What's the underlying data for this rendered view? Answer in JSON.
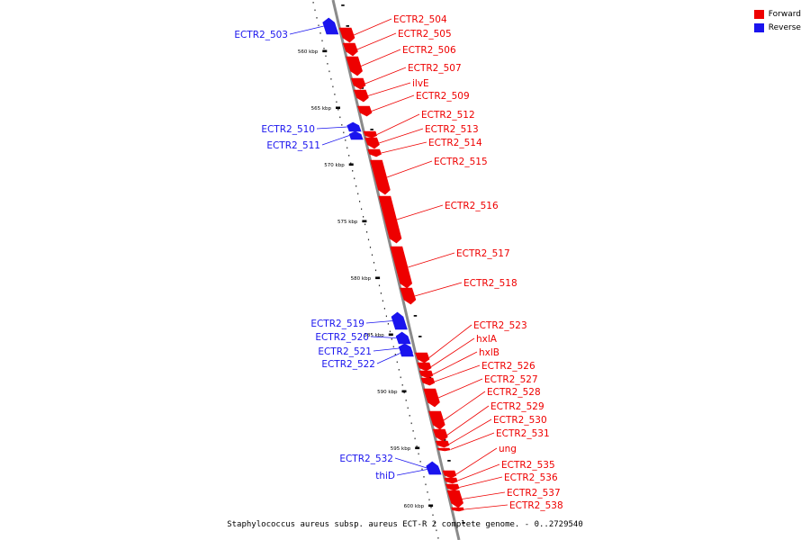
{
  "caption": "Staphylococcus aureus subsp. aureus ECT-R 2 complete genome. - 0..2729540",
  "colors": {
    "forward": "#ee0000",
    "reverse": "#1a14ee",
    "backbone": "#8a8a8a"
  },
  "legend": [
    {
      "key": "forward",
      "label": "Forward",
      "color": "#ee0000"
    },
    {
      "key": "reverse",
      "label": "Reverse",
      "color": "#1a14ee"
    }
  ],
  "ticks": [
    {
      "label": "560 kbp"
    },
    {
      "label": "565 kbp"
    },
    {
      "label": "570 kbp"
    },
    {
      "label": "575 kbp"
    },
    {
      "label": "580 kbp"
    },
    {
      "label": "585 kbp"
    },
    {
      "label": "590 kbp"
    },
    {
      "label": "595 kbp"
    },
    {
      "label": "600 kbp"
    }
  ],
  "genes": [
    {
      "name": "ECTR2_503",
      "strand": "reverse"
    },
    {
      "name": "ECTR2_504",
      "strand": "forward"
    },
    {
      "name": "ECTR2_505",
      "strand": "forward"
    },
    {
      "name": "ECTR2_506",
      "strand": "forward"
    },
    {
      "name": "ECTR2_507",
      "strand": "forward"
    },
    {
      "name": "ilvE",
      "strand": "forward"
    },
    {
      "name": "ECTR2_509",
      "strand": "forward"
    },
    {
      "name": "ECTR2_510",
      "strand": "reverse"
    },
    {
      "name": "ECTR2_511",
      "strand": "reverse"
    },
    {
      "name": "ECTR2_512",
      "strand": "forward"
    },
    {
      "name": "ECTR2_513",
      "strand": "forward"
    },
    {
      "name": "ECTR2_514",
      "strand": "forward"
    },
    {
      "name": "ECTR2_515",
      "strand": "forward"
    },
    {
      "name": "ECTR2_516",
      "strand": "forward"
    },
    {
      "name": "ECTR2_517",
      "strand": "forward"
    },
    {
      "name": "ECTR2_518",
      "strand": "forward"
    },
    {
      "name": "ECTR2_519",
      "strand": "reverse"
    },
    {
      "name": "ECTR2_520",
      "strand": "reverse"
    },
    {
      "name": "ECTR2_521",
      "strand": "reverse"
    },
    {
      "name": "ECTR2_522",
      "strand": "reverse"
    },
    {
      "name": "ECTR2_523",
      "strand": "forward"
    },
    {
      "name": "hxlA",
      "strand": "forward"
    },
    {
      "name": "hxlB",
      "strand": "forward"
    },
    {
      "name": "ECTR2_526",
      "strand": "forward"
    },
    {
      "name": "ECTR2_527",
      "strand": "forward"
    },
    {
      "name": "ECTR2_528",
      "strand": "forward"
    },
    {
      "name": "ECTR2_529",
      "strand": "forward"
    },
    {
      "name": "ECTR2_530",
      "strand": "forward"
    },
    {
      "name": "ECTR2_531",
      "strand": "forward"
    },
    {
      "name": "ECTR2_532",
      "strand": "reverse"
    },
    {
      "name": "thiD",
      "strand": "reverse"
    },
    {
      "name": "ung",
      "strand": "forward"
    },
    {
      "name": "ECTR2_535",
      "strand": "forward"
    },
    {
      "name": "ECTR2_536",
      "strand": "forward"
    },
    {
      "name": "ECTR2_537",
      "strand": "forward"
    },
    {
      "name": "ECTR2_538",
      "strand": "forward"
    }
  ]
}
